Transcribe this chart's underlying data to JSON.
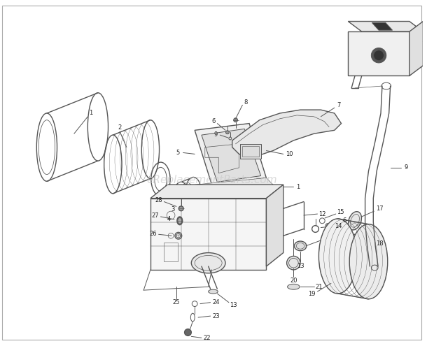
{
  "bg_color": "#ffffff",
  "watermark": "eReplacementParts.com",
  "watermark_color": "#c8c8c8",
  "watermark_fontsize": 11,
  "fig_width": 6.2,
  "fig_height": 4.95,
  "dpi": 100,
  "line_color": "#555555",
  "text_color": "#222222",
  "label_fontsize": 6.0,
  "border_color": "#aaaaaa"
}
